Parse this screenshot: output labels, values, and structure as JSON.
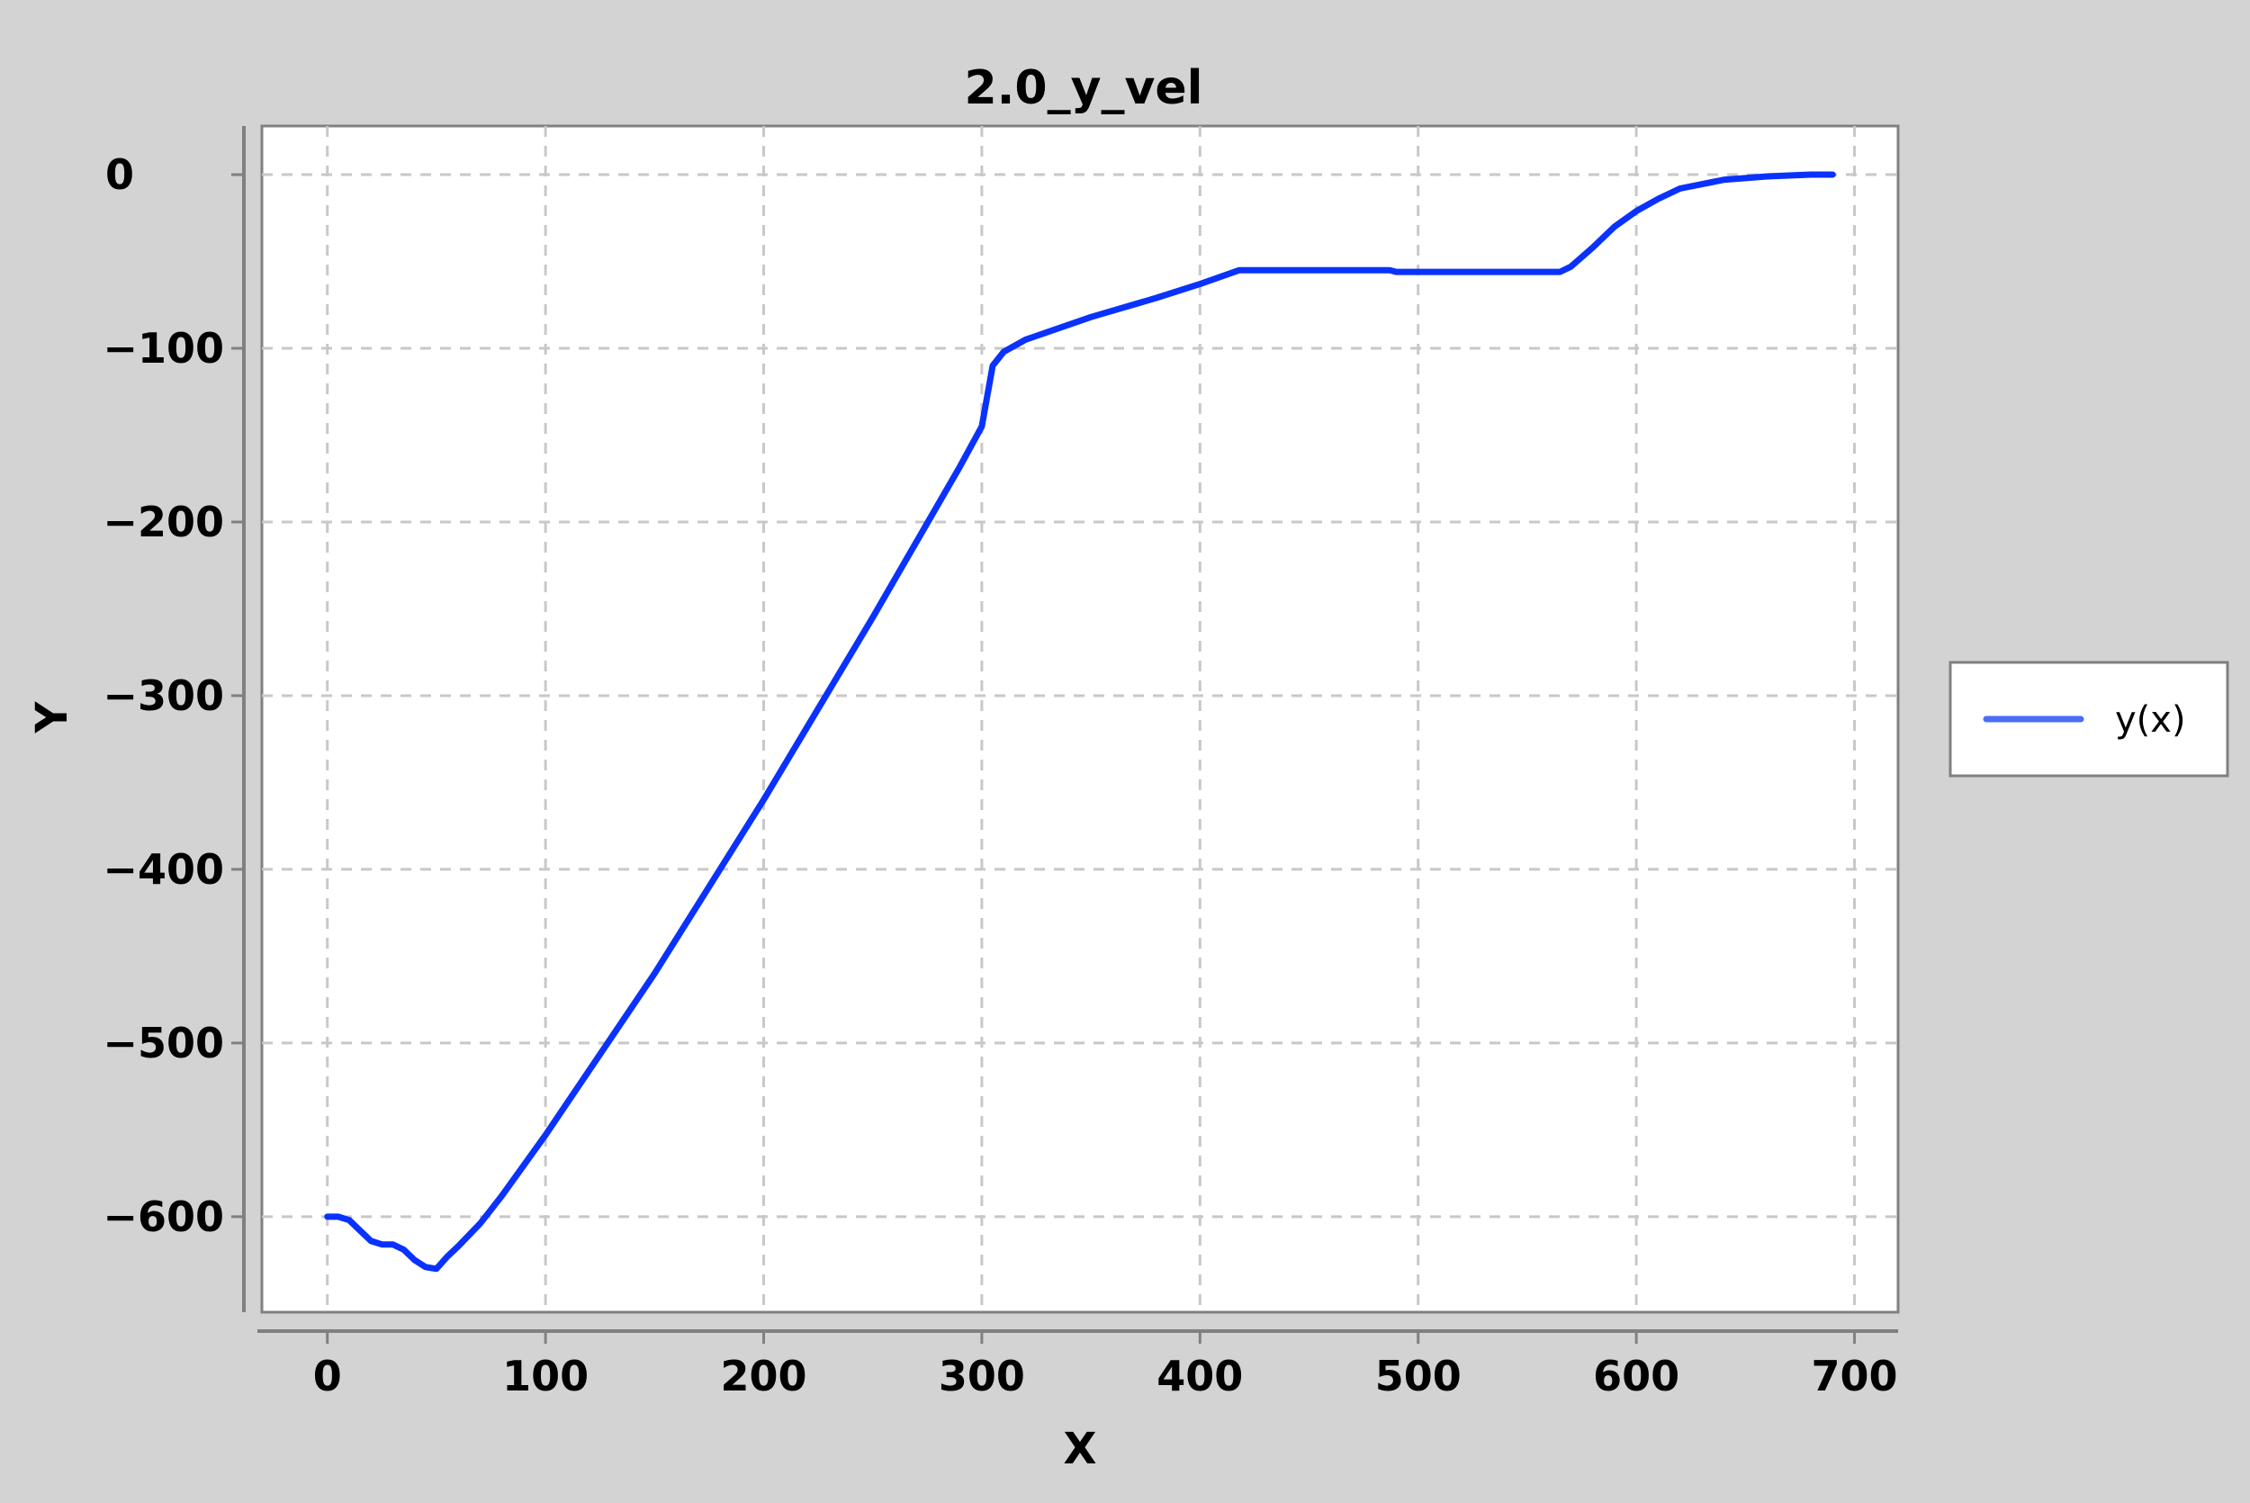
{
  "chart_data": {
    "type": "line",
    "title": "2.0_y_vel",
    "xlabel": "X",
    "ylabel": "Y",
    "xlim": [
      -30,
      720
    ],
    "ylim": [
      -655,
      28
    ],
    "xticks": [
      0,
      100,
      200,
      300,
      400,
      500,
      600,
      700
    ],
    "yticks": [
      0,
      -100,
      -200,
      -300,
      -400,
      -500,
      -600
    ],
    "grid": true,
    "legend_position": "right",
    "series": [
      {
        "name": "y(x)",
        "color": "#0a32ff",
        "x": [
          0,
          5,
          10,
          15,
          20,
          25,
          30,
          35,
          40,
          45,
          50,
          55,
          60,
          70,
          80,
          100,
          150,
          200,
          250,
          290,
          300,
          305,
          310,
          320,
          350,
          380,
          400,
          418,
          450,
          487,
          490,
          530,
          565,
          570,
          580,
          590,
          600,
          610,
          620,
          640,
          660,
          680,
          690
        ],
        "y": [
          -600,
          -600,
          -602,
          -608,
          -614,
          -616,
          -616,
          -619,
          -625,
          -629,
          -630,
          -623,
          -617,
          -604,
          -588,
          -553,
          -460,
          -360,
          -255,
          -168,
          -145,
          -110,
          -102,
          -95,
          -82,
          -71,
          -63,
          -55,
          -55,
          -55,
          -56,
          -56,
          -56,
          -53,
          -42,
          -30,
          -21,
          -14,
          -8,
          -3,
          -1,
          0,
          0
        ]
      }
    ]
  }
}
